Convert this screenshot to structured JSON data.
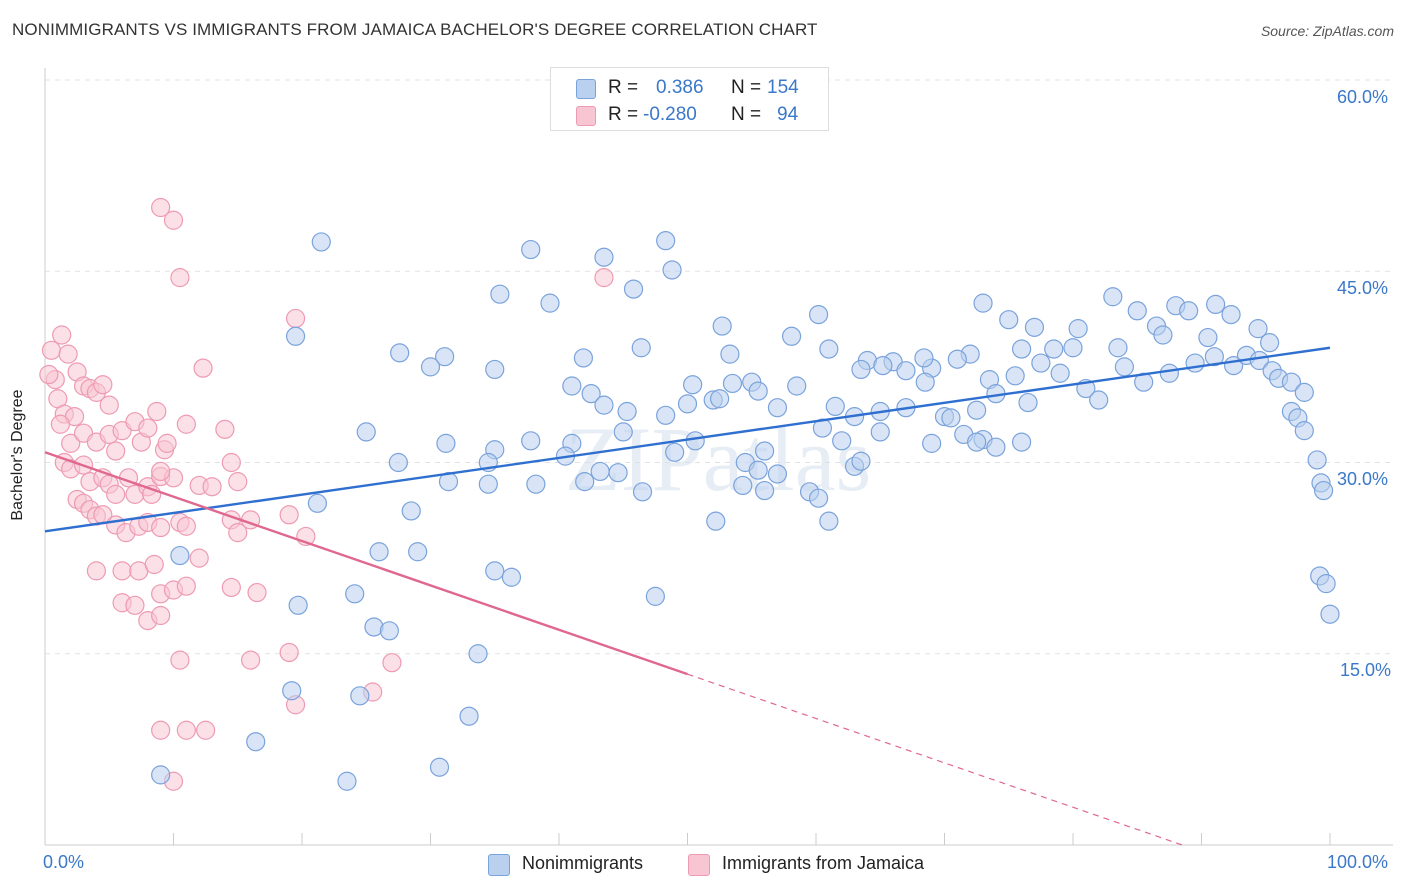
{
  "title": "NONIMMIGRANTS VS IMMIGRANTS FROM JAMAICA BACHELOR'S DEGREE CORRELATION CHART",
  "source": "Source: ZipAtlas.com",
  "watermark": "ZIPatlas",
  "legend": {
    "rows": [
      {
        "r_label": "R =",
        "r_value": "0.386",
        "n_label": "N =",
        "n_value": "154"
      },
      {
        "r_label": "R =",
        "r_value": "-0.280",
        "n_label": "N =",
        "n_value": "94"
      }
    ]
  },
  "bottom_legend": {
    "a": "Nonimmigrants",
    "b": "Immigrants from Jamaica"
  },
  "x_tick_labels": {
    "left": "0.0%",
    "right": "100.0%"
  },
  "y_tick_labels": [
    "60.0%",
    "45.0%",
    "30.0%",
    "15.0%"
  ],
  "colors": {
    "blue_fill": "#b9d0ef",
    "blue_stroke": "#7aa3dc",
    "blue_line": "#2e6fd0",
    "pink_fill": "#f8c6d3",
    "pink_stroke": "#ee9ab2",
    "pink_line": "#e0688f",
    "tick_text": "#3a78c9"
  },
  "chart_data": {
    "type": "scatter",
    "title": "NONIMMIGRANTS VS IMMIGRANTS FROM JAMAICA BACHELOR'S DEGREE CORRELATION CHART",
    "xlabel": "",
    "ylabel": "Bachelor's Degree",
    "xlim": [
      0,
      100
    ],
    "ylim": [
      0,
      60
    ],
    "y_ticks": [
      15,
      30,
      45,
      60
    ],
    "grid": true,
    "series": [
      {
        "name": "Nonimmigrants",
        "r": 0.386,
        "n": 154,
        "trend": {
          "x0": 0,
          "y0": 24.6,
          "x1": 100,
          "y1": 39.0
        },
        "points": [
          [
            21.5,
            47.3
          ],
          [
            37.8,
            46.7
          ],
          [
            43.5,
            46.1
          ],
          [
            48.3,
            47.4
          ],
          [
            48.8,
            45.1
          ],
          [
            35.4,
            43.2
          ],
          [
            39.3,
            42.5
          ],
          [
            45.8,
            43.6
          ],
          [
            19.5,
            39.9
          ],
          [
            27.6,
            38.6
          ],
          [
            31.1,
            38.3
          ],
          [
            35.0,
            37.3
          ],
          [
            41.9,
            38.2
          ],
          [
            46.4,
            39.0
          ],
          [
            53.3,
            38.5
          ],
          [
            58.1,
            39.9
          ],
          [
            52.7,
            40.7
          ],
          [
            60.2,
            41.6
          ],
          [
            73.0,
            42.5
          ],
          [
            75.0,
            41.2
          ],
          [
            80.4,
            40.5
          ],
          [
            77.0,
            40.6
          ],
          [
            83.1,
            43.0
          ],
          [
            85.0,
            41.9
          ],
          [
            86.5,
            40.7
          ],
          [
            88.0,
            42.3
          ],
          [
            89.0,
            41.9
          ],
          [
            91.1,
            42.4
          ],
          [
            92.3,
            41.6
          ],
          [
            94.4,
            40.5
          ],
          [
            95.3,
            39.4
          ],
          [
            90.5,
            39.8
          ],
          [
            87.0,
            40.0
          ],
          [
            83.5,
            39.0
          ],
          [
            80.0,
            39.0
          ],
          [
            78.5,
            38.9
          ],
          [
            76.0,
            38.9
          ],
          [
            72.0,
            38.5
          ],
          [
            69.0,
            37.4
          ],
          [
            66.0,
            37.9
          ],
          [
            64.0,
            38.0
          ],
          [
            61.0,
            38.9
          ],
          [
            63.5,
            37.3
          ],
          [
            65.2,
            37.6
          ],
          [
            67.0,
            37.2
          ],
          [
            68.4,
            38.2
          ],
          [
            71.0,
            38.1
          ],
          [
            73.5,
            36.5
          ],
          [
            75.5,
            36.8
          ],
          [
            77.5,
            37.8
          ],
          [
            79.0,
            37.0
          ],
          [
            81.0,
            35.8
          ],
          [
            82.0,
            34.9
          ],
          [
            84.0,
            37.5
          ],
          [
            85.5,
            36.3
          ],
          [
            87.5,
            37.0
          ],
          [
            89.5,
            37.8
          ],
          [
            91.0,
            38.3
          ],
          [
            92.5,
            37.6
          ],
          [
            93.5,
            38.4
          ],
          [
            94.5,
            38.0
          ],
          [
            95.5,
            37.2
          ],
          [
            96.0,
            36.6
          ],
          [
            97.0,
            36.3
          ],
          [
            98.0,
            35.5
          ],
          [
            50.4,
            36.1
          ],
          [
            52.0,
            34.9
          ],
          [
            53.5,
            36.2
          ],
          [
            55.0,
            36.3
          ],
          [
            57.0,
            34.3
          ],
          [
            58.5,
            36.0
          ],
          [
            61.5,
            34.4
          ],
          [
            63.0,
            33.6
          ],
          [
            65.0,
            34.0
          ],
          [
            70.0,
            33.6
          ],
          [
            72.5,
            34.1
          ],
          [
            74.0,
            35.4
          ],
          [
            76.5,
            34.7
          ],
          [
            30.0,
            37.5
          ],
          [
            41.0,
            36.0
          ],
          [
            42.5,
            35.4
          ],
          [
            45.3,
            34.0
          ],
          [
            48.3,
            33.7
          ],
          [
            50.0,
            34.6
          ],
          [
            52.5,
            35.0
          ],
          [
            55.5,
            35.6
          ],
          [
            68.5,
            36.3
          ],
          [
            67.0,
            34.3
          ],
          [
            43.5,
            34.5
          ],
          [
            31.2,
            31.5
          ],
          [
            35.0,
            31.0
          ],
          [
            37.8,
            31.7
          ],
          [
            41.0,
            31.5
          ],
          [
            45.0,
            32.4
          ],
          [
            50.6,
            31.7
          ],
          [
            56.0,
            30.9
          ],
          [
            60.5,
            32.7
          ],
          [
            62.0,
            31.7
          ],
          [
            65.0,
            32.4
          ],
          [
            69.0,
            31.5
          ],
          [
            70.5,
            33.5
          ],
          [
            71.5,
            32.2
          ],
          [
            73.0,
            31.8
          ],
          [
            72.5,
            31.6
          ],
          [
            74.0,
            31.2
          ],
          [
            76.0,
            31.6
          ],
          [
            27.5,
            30.0
          ],
          [
            25.0,
            32.4
          ],
          [
            34.5,
            30.0
          ],
          [
            40.5,
            30.5
          ],
          [
            43.2,
            29.3
          ],
          [
            44.6,
            29.2
          ],
          [
            49.0,
            30.8
          ],
          [
            54.5,
            30.0
          ],
          [
            55.5,
            29.4
          ],
          [
            57.0,
            29.1
          ],
          [
            59.5,
            27.7
          ],
          [
            60.2,
            27.2
          ],
          [
            61.0,
            25.4
          ],
          [
            63.0,
            29.7
          ],
          [
            63.5,
            30.1
          ],
          [
            34.5,
            28.3
          ],
          [
            31.4,
            28.5
          ],
          [
            38.2,
            28.3
          ],
          [
            42.0,
            28.5
          ],
          [
            46.5,
            27.7
          ],
          [
            52.2,
            25.4
          ],
          [
            54.3,
            28.2
          ],
          [
            56.0,
            27.8
          ],
          [
            10.5,
            22.7
          ],
          [
            21.2,
            26.8
          ],
          [
            28.5,
            26.2
          ],
          [
            35.0,
            21.5
          ],
          [
            36.3,
            21.0
          ],
          [
            29.0,
            23.0
          ],
          [
            26.0,
            23.0
          ],
          [
            24.1,
            19.7
          ],
          [
            25.6,
            17.1
          ],
          [
            26.8,
            16.8
          ],
          [
            19.7,
            18.8
          ],
          [
            33.7,
            15.0
          ],
          [
            47.5,
            19.5
          ],
          [
            19.2,
            12.1
          ],
          [
            24.5,
            11.7
          ],
          [
            33.0,
            10.1
          ],
          [
            16.4,
            8.1
          ],
          [
            30.7,
            6.1
          ],
          [
            23.5,
            5.0
          ],
          [
            9.0,
            5.5
          ],
          [
            99.2,
            21.1
          ],
          [
            99.7,
            20.5
          ],
          [
            100.0,
            18.1
          ],
          [
            97.0,
            34.0
          ],
          [
            97.5,
            33.5
          ],
          [
            98.0,
            32.5
          ],
          [
            99.0,
            30.2
          ],
          [
            99.3,
            28.4
          ],
          [
            99.5,
            27.8
          ]
        ]
      },
      {
        "name": "Immigrants from Jamaica",
        "r": -0.28,
        "n": 94,
        "trend": {
          "x0": 0,
          "y0": 30.8,
          "x1": 50,
          "y1": 13.4,
          "dash_to_x": 100,
          "dash_to_y": -4.0
        },
        "points": [
          [
            0.5,
            38.8
          ],
          [
            0.8,
            36.5
          ],
          [
            1.0,
            35.0
          ],
          [
            1.3,
            40.0
          ],
          [
            1.8,
            38.5
          ],
          [
            0.3,
            36.9
          ],
          [
            1.5,
            33.8
          ],
          [
            2.3,
            33.6
          ],
          [
            2.5,
            37.1
          ],
          [
            3.0,
            36.0
          ],
          [
            3.5,
            35.8
          ],
          [
            4.0,
            35.5
          ],
          [
            4.5,
            36.1
          ],
          [
            5.0,
            34.5
          ],
          [
            1.2,
            33.0
          ],
          [
            2.0,
            31.5
          ],
          [
            3.0,
            32.3
          ],
          [
            4.0,
            31.6
          ],
          [
            5.0,
            32.2
          ],
          [
            5.5,
            30.9
          ],
          [
            6.0,
            32.5
          ],
          [
            7.0,
            33.2
          ],
          [
            7.5,
            31.6
          ],
          [
            8.0,
            32.7
          ],
          [
            8.7,
            34.0
          ],
          [
            9.3,
            31.0
          ],
          [
            1.5,
            30.0
          ],
          [
            2.0,
            29.5
          ],
          [
            3.0,
            29.8
          ],
          [
            3.5,
            28.5
          ],
          [
            4.5,
            28.8
          ],
          [
            5.0,
            28.3
          ],
          [
            5.5,
            27.5
          ],
          [
            6.5,
            28.8
          ],
          [
            7.0,
            27.5
          ],
          [
            8.0,
            28.1
          ],
          [
            9.0,
            28.9
          ],
          [
            10.0,
            28.8
          ],
          [
            2.5,
            27.1
          ],
          [
            3.0,
            26.8
          ],
          [
            3.5,
            26.3
          ],
          [
            4.0,
            25.8
          ],
          [
            4.5,
            25.9
          ],
          [
            5.5,
            25.1
          ],
          [
            6.3,
            24.5
          ],
          [
            7.3,
            25.0
          ],
          [
            8.0,
            25.3
          ],
          [
            9.0,
            24.9
          ],
          [
            10.5,
            25.3
          ],
          [
            11.0,
            25.0
          ],
          [
            12.0,
            28.2
          ],
          [
            13.0,
            28.1
          ],
          [
            14.5,
            25.5
          ],
          [
            15.0,
            24.5
          ],
          [
            16.0,
            25.5
          ],
          [
            19.0,
            25.9
          ],
          [
            20.3,
            24.2
          ],
          [
            12.3,
            37.4
          ],
          [
            14.0,
            32.6
          ],
          [
            14.5,
            30.0
          ],
          [
            15.0,
            28.5
          ],
          [
            11.0,
            33.0
          ],
          [
            9.5,
            31.5
          ],
          [
            9.0,
            29.3
          ],
          [
            8.3,
            27.5
          ],
          [
            4.0,
            21.5
          ],
          [
            6.0,
            21.5
          ],
          [
            7.3,
            21.5
          ],
          [
            8.5,
            22.0
          ],
          [
            9.0,
            19.7
          ],
          [
            10.0,
            20.0
          ],
          [
            11.0,
            20.3
          ],
          [
            12.0,
            22.5
          ],
          [
            14.5,
            20.2
          ],
          [
            16.5,
            19.8
          ],
          [
            6.0,
            19.0
          ],
          [
            7.0,
            18.8
          ],
          [
            8.0,
            17.6
          ],
          [
            9.0,
            18.0
          ],
          [
            10.5,
            14.5
          ],
          [
            16.0,
            14.5
          ],
          [
            19.0,
            15.1
          ],
          [
            27.0,
            14.3
          ],
          [
            19.5,
            11.0
          ],
          [
            25.5,
            12.0
          ],
          [
            9.0,
            9.0
          ],
          [
            11.0,
            9.0
          ],
          [
            12.5,
            9.0
          ],
          [
            10.0,
            5.0
          ],
          [
            9.0,
            50.0
          ],
          [
            10.0,
            49.0
          ],
          [
            10.5,
            44.5
          ],
          [
            19.5,
            41.3
          ],
          [
            43.5,
            44.5
          ]
        ]
      }
    ]
  }
}
